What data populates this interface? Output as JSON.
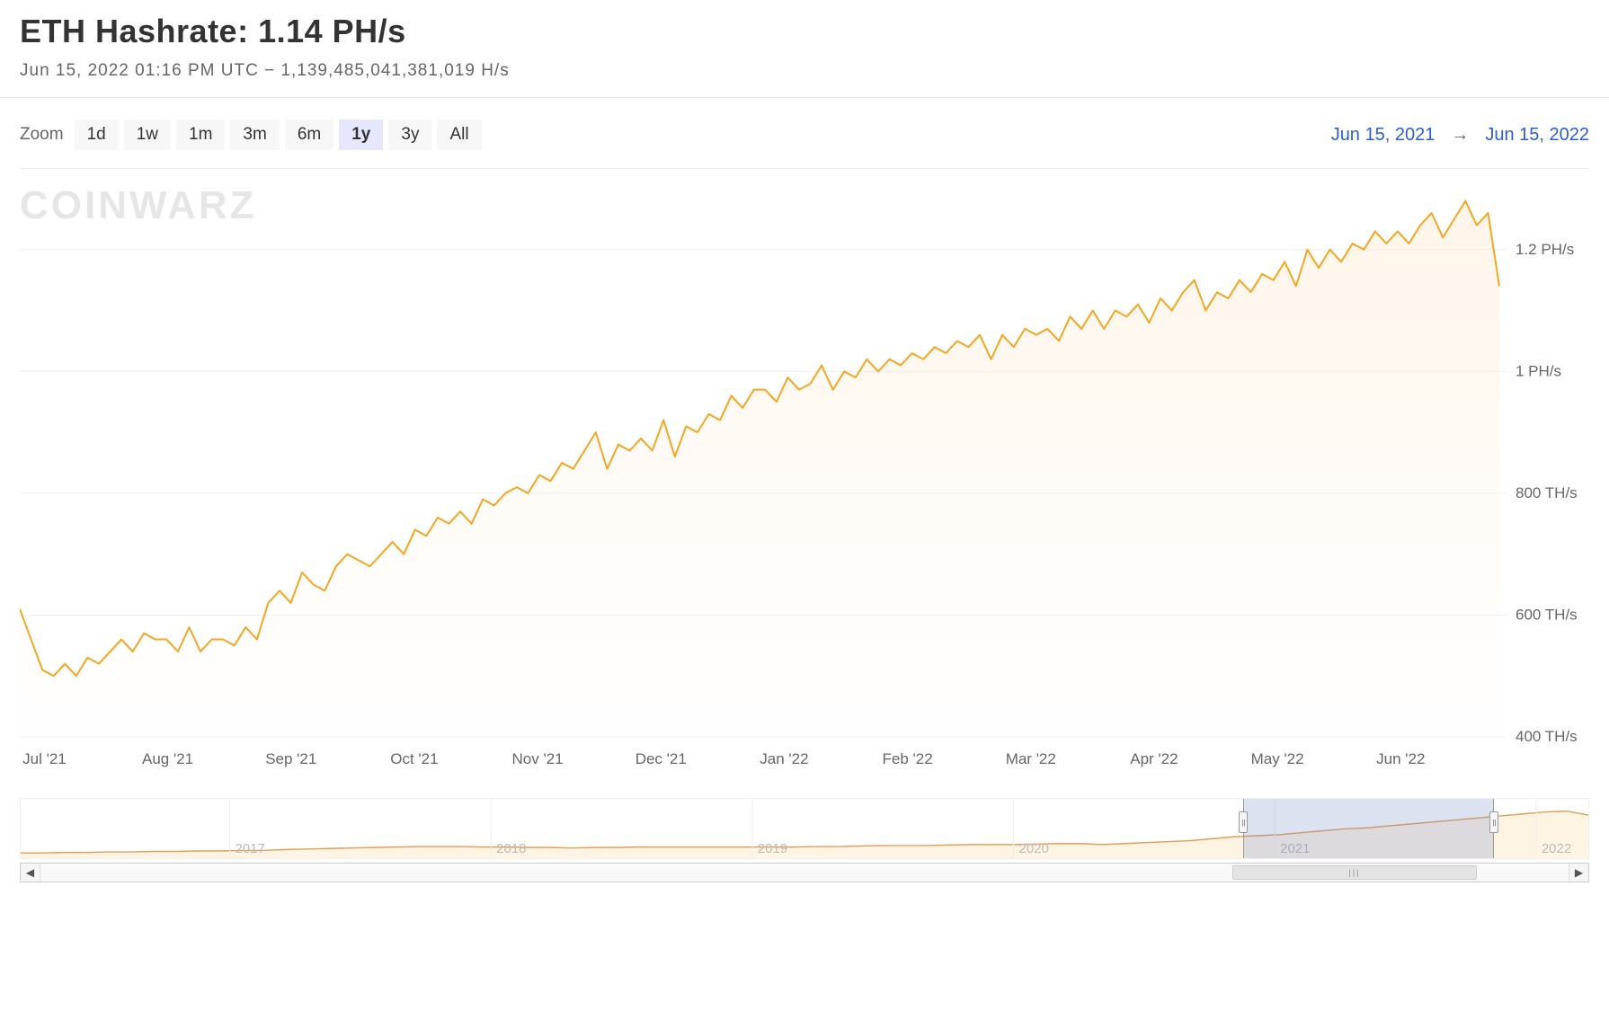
{
  "header": {
    "title": "ETH Hashrate: 1.14 PH/s",
    "subtitle": "Jun 15, 2022 01:16 PM UTC   −   1,139,485,041,381,019 H/s"
  },
  "toolbar": {
    "zoom_label": "Zoom",
    "zoom_buttons": [
      "1d",
      "1w",
      "1m",
      "3m",
      "6m",
      "1y",
      "3y",
      "All"
    ],
    "zoom_active": "1y",
    "range_from": "Jun 15, 2021",
    "range_arrow": "→",
    "range_to": "Jun 15, 2022"
  },
  "watermark": "COINWARZ",
  "chart": {
    "type": "area",
    "line_color": "#f5a623",
    "line_width": 2,
    "fill_top": "rgba(255,220,180,0.30)",
    "fill_bottom": "rgba(255,235,215,0.02)",
    "background_color": "#ffffff",
    "grid_color": "#f0f0f0",
    "axis_label_color": "#666666",
    "axis_label_fontsize": 17,
    "x_ticks": [
      "Jul '21",
      "Aug '21",
      "Sep '21",
      "Oct '21",
      "Nov '21",
      "Dec '21",
      "Jan '22",
      "Feb '22",
      "Mar '22",
      "Apr '22",
      "May '22",
      "Jun '22"
    ],
    "y_min": 400,
    "y_max": 1300,
    "y_ticks": [
      {
        "v": 400,
        "label": "400 TH/s"
      },
      {
        "v": 600,
        "label": "600 TH/s"
      },
      {
        "v": 800,
        "label": "800 TH/s"
      },
      {
        "v": 1000,
        "label": "1 PH/s"
      },
      {
        "v": 1200,
        "label": "1.2 PH/s"
      }
    ],
    "series": [
      610,
      560,
      510,
      500,
      520,
      500,
      530,
      520,
      540,
      560,
      540,
      570,
      560,
      560,
      540,
      580,
      540,
      560,
      560,
      550,
      580,
      560,
      620,
      640,
      620,
      670,
      650,
      640,
      680,
      700,
      690,
      680,
      700,
      720,
      700,
      740,
      730,
      760,
      750,
      770,
      750,
      790,
      780,
      800,
      810,
      800,
      830,
      820,
      850,
      840,
      870,
      900,
      840,
      880,
      870,
      890,
      870,
      920,
      860,
      910,
      900,
      930,
      920,
      960,
      940,
      970,
      970,
      950,
      990,
      970,
      980,
      1010,
      970,
      1000,
      990,
      1020,
      1000,
      1020,
      1010,
      1030,
      1020,
      1040,
      1030,
      1050,
      1040,
      1060,
      1020,
      1060,
      1040,
      1070,
      1060,
      1070,
      1050,
      1090,
      1070,
      1100,
      1070,
      1100,
      1090,
      1110,
      1080,
      1120,
      1100,
      1130,
      1150,
      1100,
      1130,
      1120,
      1150,
      1130,
      1160,
      1150,
      1180,
      1140,
      1200,
      1170,
      1200,
      1180,
      1210,
      1200,
      1230,
      1210,
      1230,
      1210,
      1240,
      1260,
      1220,
      1250,
      1280,
      1240,
      1260,
      1140
    ]
  },
  "navigator": {
    "line_color": "#e0a05a",
    "track_bg": "#ffffff",
    "highlight_bg": "rgba(120,140,200,0.25)",
    "x_ticks": [
      "2017",
      "2018",
      "2019",
      "2020",
      "2021",
      "2022"
    ],
    "highlight_from_pct": 78,
    "highlight_to_pct": 94,
    "scroll_thumb_from_pct": 78,
    "scroll_thumb_width_pct": 16,
    "series": [
      5,
      5,
      6,
      6,
      7,
      7,
      8,
      8,
      9,
      9,
      10,
      10,
      12,
      13,
      14,
      15,
      16,
      17,
      18,
      18,
      18,
      17,
      17,
      16,
      16,
      15,
      16,
      16,
      17,
      17,
      17,
      17,
      17,
      17,
      17,
      17,
      18,
      18,
      19,
      20,
      20,
      20,
      21,
      22,
      22,
      22,
      23,
      24,
      24,
      22,
      24,
      26,
      28,
      30,
      34,
      38,
      40,
      42,
      46,
      50,
      54,
      56,
      60,
      64,
      68,
      72,
      76,
      80,
      84,
      88,
      90,
      82
    ]
  }
}
